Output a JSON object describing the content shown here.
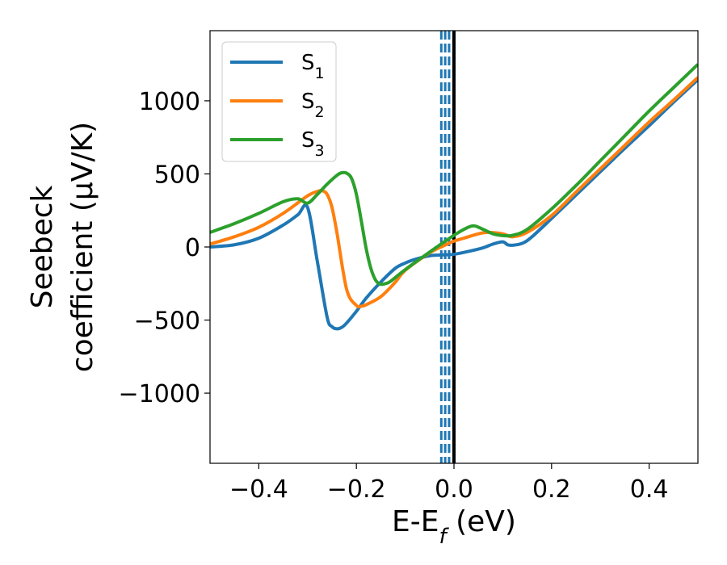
{
  "chart_data": {
    "type": "line",
    "xlabel": "E-E",
    "xlabel_sub": "f",
    "xlabel_unit": " (eV)",
    "ylabel_line1": "Seebeck",
    "ylabel_line2": "coefficient  (μV/K)",
    "xlim": [
      -0.5,
      0.5
    ],
    "ylim": [
      -1480,
      1480
    ],
    "xticks": [
      -0.4,
      -0.2,
      0.0,
      0.2,
      0.4
    ],
    "xtick_labels": [
      "−0.4",
      "−0.2",
      "0.0",
      "0.2",
      "0.4"
    ],
    "yticks": [
      -1000,
      -500,
      0,
      500,
      1000
    ],
    "ytick_labels": [
      "−1000",
      "−500",
      "0",
      "500",
      "1000"
    ],
    "legend_position": "upper-left",
    "series": [
      {
        "name": "S",
        "name_sub": "1",
        "color": "#1f77b4",
        "x": [
          -0.5,
          -0.45,
          -0.4,
          -0.35,
          -0.32,
          -0.3,
          -0.28,
          -0.26,
          -0.25,
          -0.24,
          -0.23,
          -0.22,
          -0.2,
          -0.18,
          -0.15,
          -0.12,
          -0.1,
          -0.08,
          -0.05,
          -0.03,
          0.0,
          0.03,
          0.06,
          0.08,
          0.1,
          0.11,
          0.12,
          0.14,
          0.16,
          0.2,
          0.25,
          0.3,
          0.35,
          0.4,
          0.45,
          0.5
        ],
        "y": [
          0,
          15,
          60,
          150,
          220,
          270,
          -100,
          -480,
          -545,
          -560,
          -550,
          -520,
          -440,
          -350,
          -240,
          -145,
          -110,
          -85,
          -60,
          -55,
          -50,
          -30,
          -5,
          20,
          35,
          15,
          12,
          25,
          70,
          195,
          355,
          515,
          675,
          830,
          990,
          1145
        ]
      },
      {
        "name": "S",
        "name_sub": "2",
        "color": "#ff7f0e",
        "x": [
          -0.5,
          -0.45,
          -0.4,
          -0.35,
          -0.3,
          -0.28,
          -0.27,
          -0.26,
          -0.25,
          -0.24,
          -0.22,
          -0.2,
          -0.19,
          -0.18,
          -0.15,
          -0.12,
          -0.1,
          -0.05,
          -0.02,
          0.0,
          0.02,
          0.05,
          0.07,
          0.1,
          0.12,
          0.15,
          0.2,
          0.25,
          0.3,
          0.35,
          0.4,
          0.45,
          0.5
        ],
        "y": [
          20,
          70,
          135,
          230,
          350,
          380,
          385,
          360,
          270,
          100,
          -290,
          -400,
          -405,
          -395,
          -340,
          -240,
          -160,
          -40,
          10,
          40,
          60,
          90,
          100,
          90,
          70,
          100,
          215,
          375,
          535,
          695,
          855,
          1005,
          1160
        ]
      },
      {
        "name": "S",
        "name_sub": "3",
        "color": "#2ca02c",
        "x": [
          -0.5,
          -0.45,
          -0.4,
          -0.35,
          -0.32,
          -0.3,
          -0.28,
          -0.26,
          -0.24,
          -0.23,
          -0.22,
          -0.21,
          -0.2,
          -0.19,
          -0.18,
          -0.17,
          -0.16,
          -0.15,
          -0.14,
          -0.13,
          -0.1,
          -0.05,
          -0.02,
          0.0,
          0.02,
          0.04,
          0.06,
          0.08,
          0.1,
          0.12,
          0.15,
          0.2,
          0.25,
          0.3,
          0.35,
          0.4,
          0.45,
          0.5
        ],
        "y": [
          100,
          160,
          230,
          310,
          330,
          300,
          360,
          430,
          490,
          508,
          505,
          470,
          360,
          180,
          -10,
          -150,
          -230,
          -255,
          -250,
          -235,
          -155,
          -35,
          35,
          80,
          120,
          145,
          120,
          90,
          78,
          80,
          120,
          260,
          420,
          590,
          760,
          930,
          1090,
          1250
        ]
      }
    ],
    "vertical_lines": [
      {
        "x": -0.026,
        "style": "dashed",
        "color": "#1f77b4"
      },
      {
        "x": -0.018,
        "style": "dashed",
        "color": "#1f77b4"
      },
      {
        "x": -0.01,
        "style": "dashed",
        "color": "#1f77b4"
      },
      {
        "x": 0.0,
        "style": "solid",
        "color": "#000000"
      }
    ]
  }
}
